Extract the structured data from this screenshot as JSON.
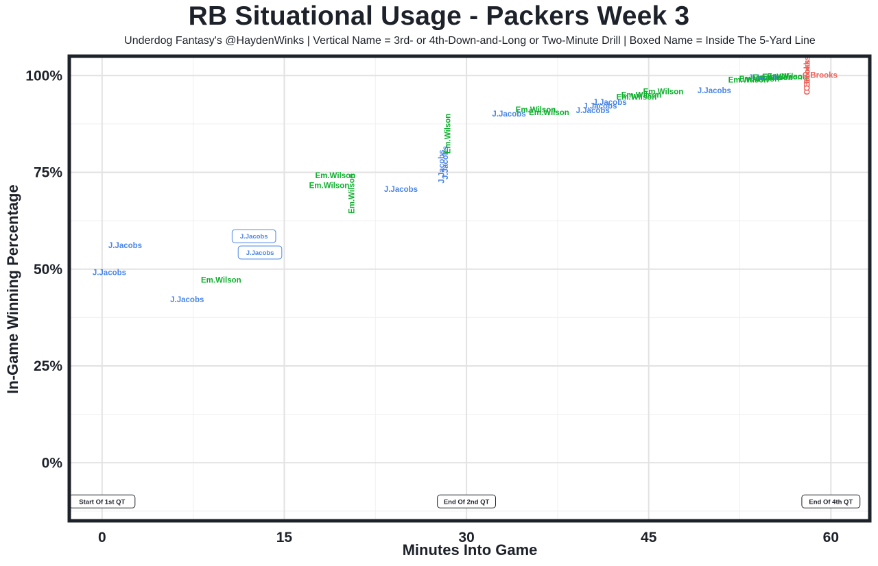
{
  "header": {
    "title": "RB Situational Usage - Packers Week 3",
    "subtitle": "Underdog Fantasy's @HaydenWinks | Vertical Name = 3rd- or 4th-Down-and-Long or Two-Minute Drill | Boxed Name = Inside The 5-Yard Line"
  },
  "chart_data": {
    "type": "scatter",
    "title": "RB Situational Usage - Packers Week 3",
    "subtitle": "Underdog Fantasy's @HaydenWinks | Vertical Name = 3rd- or 4th-Down-and-Long or Two-Minute Drill | Boxed Name = Inside The 5-Yard Line",
    "xlabel": "Minutes Into Game",
    "ylabel": "In-Game Winning Percentage",
    "xlim": [
      -2.7,
      63.2
    ],
    "ylim": [
      -15,
      105
    ],
    "x_ticks": [
      0,
      15,
      30,
      45,
      60
    ],
    "x_tick_labels": [
      "0",
      "15",
      "30",
      "45",
      "60"
    ],
    "y_ticks": [
      0,
      25,
      50,
      75,
      100
    ],
    "y_tick_labels": [
      "0%",
      "25%",
      "50%",
      "75%",
      "100%"
    ],
    "grid": true,
    "colors": {
      "J.Jacobs": "#4a86e8",
      "Em.Wilson": "#0fb02e",
      "C.Brooks": "#f0625a"
    },
    "period_markers": [
      {
        "label": "Start Of 1st QT",
        "x": 0,
        "y": -10
      },
      {
        "label": "End Of 2nd QT",
        "x": 30,
        "y": -10
      },
      {
        "label": "End Of 4th QT",
        "x": 60,
        "y": -10
      }
    ],
    "points": [
      {
        "player": "J.Jacobs",
        "x": 1.9,
        "y": 56,
        "style": "normal"
      },
      {
        "player": "J.Jacobs",
        "x": 0.6,
        "y": 49,
        "style": "normal"
      },
      {
        "player": "J.Jacobs",
        "x": 7.0,
        "y": 42,
        "style": "normal"
      },
      {
        "player": "Em.Wilson",
        "x": 9.8,
        "y": 47,
        "style": "normal"
      },
      {
        "player": "J.Jacobs",
        "x": 12.5,
        "y": 58.5,
        "style": "boxed"
      },
      {
        "player": "J.Jacobs",
        "x": 13.0,
        "y": 54.3,
        "style": "boxed"
      },
      {
        "player": "Em.Wilson",
        "x": 19.2,
        "y": 74,
        "style": "normal"
      },
      {
        "player": "Em.Wilson",
        "x": 18.7,
        "y": 71.5,
        "style": "normal"
      },
      {
        "player": "Em.Wilson",
        "x": 20.6,
        "y": 69.5,
        "style": "vertical"
      },
      {
        "player": "J.Jacobs",
        "x": 24.6,
        "y": 70.5,
        "style": "normal"
      },
      {
        "player": "J.Jacobs",
        "x": 28.3,
        "y": 77.5,
        "style": "vertical"
      },
      {
        "player": "J.Jacobs",
        "x": 28.0,
        "y": 76.5,
        "style": "vertical"
      },
      {
        "player": "Em.Wilson",
        "x": 28.5,
        "y": 85,
        "style": "vertical"
      },
      {
        "player": "J.Jacobs",
        "x": 33.5,
        "y": 90,
        "style": "normal"
      },
      {
        "player": "Em.Wilson",
        "x": 35.7,
        "y": 91,
        "style": "normal"
      },
      {
        "player": "Em.Wilson",
        "x": 36.8,
        "y": 90.3,
        "style": "normal"
      },
      {
        "player": "J.Jacobs",
        "x": 40.4,
        "y": 90.8,
        "style": "normal"
      },
      {
        "player": "J.Jacobs",
        "x": 41.0,
        "y": 92,
        "style": "normal"
      },
      {
        "player": "J.Jacobs",
        "x": 41.8,
        "y": 93,
        "style": "normal"
      },
      {
        "player": "Em.Wilson",
        "x": 44.4,
        "y": 94.8,
        "style": "normal"
      },
      {
        "player": "Em.Wilson",
        "x": 44.0,
        "y": 94.3,
        "style": "normal"
      },
      {
        "player": "Em.Wilson",
        "x": 46.2,
        "y": 95.7,
        "style": "normal"
      },
      {
        "player": "J.Jacobs",
        "x": 50.4,
        "y": 96,
        "style": "normal"
      },
      {
        "player": "Em.Wilson",
        "x": 53.2,
        "y": 98.7,
        "style": "normal"
      },
      {
        "player": "Em.Wilson",
        "x": 54.1,
        "y": 99,
        "style": "normal"
      },
      {
        "player": "J.Jacobs",
        "x": 54.6,
        "y": 99.3,
        "style": "normal"
      },
      {
        "player": "Em.Wilson",
        "x": 55.2,
        "y": 99.3,
        "style": "normal"
      },
      {
        "player": "Em.Wilson",
        "x": 56.0,
        "y": 99.5,
        "style": "normal"
      },
      {
        "player": "Em.Wilson",
        "x": 56.4,
        "y": 99.6,
        "style": "normal"
      },
      {
        "player": "C.Brooks",
        "x": 59.1,
        "y": 100,
        "style": "normal"
      },
      {
        "player": "C.Brooks",
        "x": 58.1,
        "y": 100.5,
        "style": "vertical"
      },
      {
        "player": "C.Brooks",
        "x": 58.1,
        "y": 99.5,
        "style": "vertical"
      }
    ]
  }
}
